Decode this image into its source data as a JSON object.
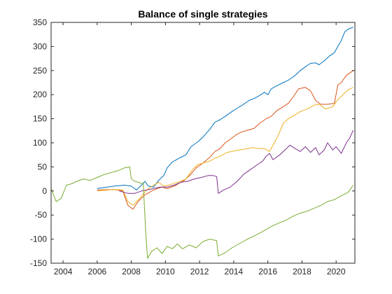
{
  "chart_data": {
    "type": "line",
    "title": "Balance of single strategies",
    "xlabel": "",
    "ylabel": "",
    "xlim": [
      2003.3,
      2021.1
    ],
    "ylim": [
      -150,
      350
    ],
    "xticks": [
      "2004",
      "2006",
      "2008",
      "2010",
      "2012",
      "2014",
      "2016",
      "2018",
      "2020"
    ],
    "xtick_values": [
      2004,
      2006,
      2008,
      2010,
      2012,
      2014,
      2016,
      2018,
      2020
    ],
    "yticks": [
      "-150",
      "-100",
      "-50",
      "0",
      "50",
      "100",
      "150",
      "200",
      "250",
      "300",
      "350"
    ],
    "ytick_values": [
      -150,
      -100,
      -50,
      0,
      50,
      100,
      150,
      200,
      250,
      300,
      350
    ],
    "grid": false,
    "legend": "none",
    "series": [
      {
        "color": "#0072BD",
        "points": [
          [
            2006.0,
            5
          ],
          [
            2007.0,
            10
          ],
          [
            2007.6,
            12
          ],
          [
            2008.0,
            10
          ],
          [
            2008.3,
            2
          ],
          [
            2008.6,
            12
          ],
          [
            2008.8,
            20
          ],
          [
            2009.0,
            10
          ],
          [
            2009.3,
            8
          ],
          [
            2009.6,
            22
          ],
          [
            2009.9,
            32
          ],
          [
            2010.1,
            48
          ],
          [
            2010.4,
            60
          ],
          [
            2010.8,
            68
          ],
          [
            2011.2,
            75
          ],
          [
            2011.5,
            92
          ],
          [
            2011.9,
            102
          ],
          [
            2012.2,
            112
          ],
          [
            2012.6,
            128
          ],
          [
            2012.9,
            143
          ],
          [
            2013.2,
            148
          ],
          [
            2013.5,
            155
          ],
          [
            2013.9,
            165
          ],
          [
            2014.2,
            172
          ],
          [
            2014.5,
            178
          ],
          [
            2014.9,
            188
          ],
          [
            2015.2,
            192
          ],
          [
            2015.5,
            198
          ],
          [
            2015.8,
            205
          ],
          [
            2016.0,
            200
          ],
          [
            2016.2,
            212
          ],
          [
            2016.5,
            218
          ],
          [
            2016.9,
            225
          ],
          [
            2017.2,
            230
          ],
          [
            2017.6,
            240
          ],
          [
            2017.9,
            250
          ],
          [
            2018.2,
            258
          ],
          [
            2018.5,
            265
          ],
          [
            2018.8,
            266
          ],
          [
            2019.0,
            262
          ],
          [
            2019.3,
            270
          ],
          [
            2019.6,
            280
          ],
          [
            2019.9,
            287
          ],
          [
            2020.1,
            300
          ],
          [
            2020.3,
            312
          ],
          [
            2020.5,
            330
          ],
          [
            2020.7,
            336
          ],
          [
            2021.0,
            340
          ]
        ]
      },
      {
        "color": "#D95319",
        "points": [
          [
            2006.0,
            2
          ],
          [
            2007.0,
            3
          ],
          [
            2007.5,
            0
          ],
          [
            2007.8,
            -30
          ],
          [
            2008.1,
            -38
          ],
          [
            2008.4,
            -22
          ],
          [
            2008.8,
            -8
          ],
          [
            2009.2,
            0
          ],
          [
            2009.5,
            5
          ],
          [
            2009.8,
            8
          ],
          [
            2010.1,
            5
          ],
          [
            2010.5,
            10
          ],
          [
            2010.8,
            16
          ],
          [
            2011.1,
            22
          ],
          [
            2011.5,
            35
          ],
          [
            2011.8,
            48
          ],
          [
            2012.2,
            58
          ],
          [
            2012.6,
            70
          ],
          [
            2012.9,
            82
          ],
          [
            2013.2,
            88
          ],
          [
            2013.5,
            100
          ],
          [
            2013.9,
            110
          ],
          [
            2014.2,
            118
          ],
          [
            2014.5,
            123
          ],
          [
            2014.8,
            126
          ],
          [
            2015.2,
            130
          ],
          [
            2015.5,
            140
          ],
          [
            2015.9,
            150
          ],
          [
            2016.2,
            155
          ],
          [
            2016.5,
            166
          ],
          [
            2016.9,
            175
          ],
          [
            2017.2,
            182
          ],
          [
            2017.5,
            196
          ],
          [
            2017.8,
            212
          ],
          [
            2018.2,
            215
          ],
          [
            2018.5,
            208
          ],
          [
            2018.8,
            188
          ],
          [
            2019.1,
            180
          ],
          [
            2019.5,
            180
          ],
          [
            2019.9,
            182
          ],
          [
            2020.1,
            220
          ],
          [
            2020.3,
            225
          ],
          [
            2020.6,
            240
          ],
          [
            2021.0,
            250
          ]
        ]
      },
      {
        "color": "#EDB120",
        "points": [
          [
            2006.0,
            0
          ],
          [
            2007.0,
            3
          ],
          [
            2007.5,
            2
          ],
          [
            2007.8,
            -22
          ],
          [
            2008.1,
            -30
          ],
          [
            2008.5,
            -15
          ],
          [
            2008.9,
            2
          ],
          [
            2009.3,
            12
          ],
          [
            2009.6,
            18
          ],
          [
            2009.9,
            10
          ],
          [
            2010.2,
            12
          ],
          [
            2010.5,
            16
          ],
          [
            2010.9,
            20
          ],
          [
            2011.2,
            25
          ],
          [
            2011.6,
            45
          ],
          [
            2011.9,
            55
          ],
          [
            2012.2,
            58
          ],
          [
            2012.6,
            62
          ],
          [
            2012.9,
            68
          ],
          [
            2013.2,
            72
          ],
          [
            2013.6,
            80
          ],
          [
            2013.9,
            82
          ],
          [
            2014.3,
            85
          ],
          [
            2014.7,
            87
          ],
          [
            2015.1,
            90
          ],
          [
            2015.5,
            88
          ],
          [
            2015.8,
            88
          ],
          [
            2016.1,
            82
          ],
          [
            2016.3,
            95
          ],
          [
            2016.6,
            115
          ],
          [
            2016.9,
            140
          ],
          [
            2017.2,
            150
          ],
          [
            2017.6,
            158
          ],
          [
            2017.9,
            165
          ],
          [
            2018.3,
            170
          ],
          [
            2018.7,
            178
          ],
          [
            2019.0,
            180
          ],
          [
            2019.4,
            170
          ],
          [
            2019.8,
            175
          ],
          [
            2020.1,
            190
          ],
          [
            2020.4,
            200
          ],
          [
            2020.7,
            210
          ],
          [
            2021.0,
            215
          ]
        ]
      },
      {
        "color": "#7E2F8E",
        "points": [
          [
            2007.3,
            0
          ],
          [
            2007.8,
            -5
          ],
          [
            2008.2,
            -5
          ],
          [
            2008.6,
            0
          ],
          [
            2008.9,
            2
          ],
          [
            2009.3,
            5
          ],
          [
            2009.7,
            8
          ],
          [
            2010.1,
            8
          ],
          [
            2010.5,
            12
          ],
          [
            2010.9,
            18
          ],
          [
            2011.3,
            20
          ],
          [
            2011.7,
            25
          ],
          [
            2012.1,
            28
          ],
          [
            2012.5,
            32
          ],
          [
            2012.8,
            32
          ],
          [
            2013.0,
            30
          ],
          [
            2013.1,
            -5
          ],
          [
            2013.4,
            2
          ],
          [
            2013.8,
            8
          ],
          [
            2014.2,
            20
          ],
          [
            2014.6,
            35
          ],
          [
            2015.0,
            45
          ],
          [
            2015.4,
            55
          ],
          [
            2015.7,
            62
          ],
          [
            2015.9,
            72
          ],
          [
            2016.1,
            78
          ],
          [
            2016.3,
            65
          ],
          [
            2016.7,
            75
          ],
          [
            2017.0,
            85
          ],
          [
            2017.3,
            95
          ],
          [
            2017.6,
            88
          ],
          [
            2017.9,
            82
          ],
          [
            2018.2,
            92
          ],
          [
            2018.5,
            80
          ],
          [
            2018.8,
            90
          ],
          [
            2019.0,
            75
          ],
          [
            2019.3,
            85
          ],
          [
            2019.5,
            100
          ],
          [
            2019.8,
            85
          ],
          [
            2020.0,
            92
          ],
          [
            2020.3,
            78
          ],
          [
            2020.6,
            100
          ],
          [
            2020.8,
            110
          ],
          [
            2021.0,
            126
          ]
        ]
      },
      {
        "color": "#77AC30",
        "points": [
          [
            2003.3,
            5
          ],
          [
            2003.6,
            -22
          ],
          [
            2003.9,
            -15
          ],
          [
            2004.2,
            12
          ],
          [
            2004.5,
            15
          ],
          [
            2004.8,
            20
          ],
          [
            2005.2,
            25
          ],
          [
            2005.6,
            22
          ],
          [
            2006.0,
            28
          ],
          [
            2006.4,
            34
          ],
          [
            2006.8,
            38
          ],
          [
            2007.2,
            42
          ],
          [
            2007.6,
            48
          ],
          [
            2007.9,
            50
          ],
          [
            2008.0,
            25
          ],
          [
            2008.2,
            20
          ],
          [
            2008.4,
            18
          ],
          [
            2008.7,
            15
          ],
          [
            2008.85,
            -90
          ],
          [
            2008.95,
            -140
          ],
          [
            2009.2,
            -125
          ],
          [
            2009.5,
            -118
          ],
          [
            2009.8,
            -130
          ],
          [
            2010.1,
            -115
          ],
          [
            2010.4,
            -120
          ],
          [
            2010.7,
            -110
          ],
          [
            2011.0,
            -120
          ],
          [
            2011.4,
            -112
          ],
          [
            2011.8,
            -118
          ],
          [
            2012.2,
            -105
          ],
          [
            2012.6,
            -100
          ],
          [
            2013.0,
            -103
          ],
          [
            2013.1,
            -135
          ],
          [
            2013.5,
            -128
          ],
          [
            2013.9,
            -118
          ],
          [
            2014.3,
            -110
          ],
          [
            2014.7,
            -102
          ],
          [
            2015.1,
            -95
          ],
          [
            2015.5,
            -88
          ],
          [
            2015.9,
            -80
          ],
          [
            2016.3,
            -72
          ],
          [
            2016.7,
            -66
          ],
          [
            2017.1,
            -60
          ],
          [
            2017.5,
            -52
          ],
          [
            2017.9,
            -46
          ],
          [
            2018.3,
            -42
          ],
          [
            2018.7,
            -36
          ],
          [
            2019.1,
            -30
          ],
          [
            2019.5,
            -22
          ],
          [
            2019.9,
            -18
          ],
          [
            2020.3,
            -10
          ],
          [
            2020.7,
            -3
          ],
          [
            2021.0,
            12
          ]
        ]
      }
    ]
  }
}
